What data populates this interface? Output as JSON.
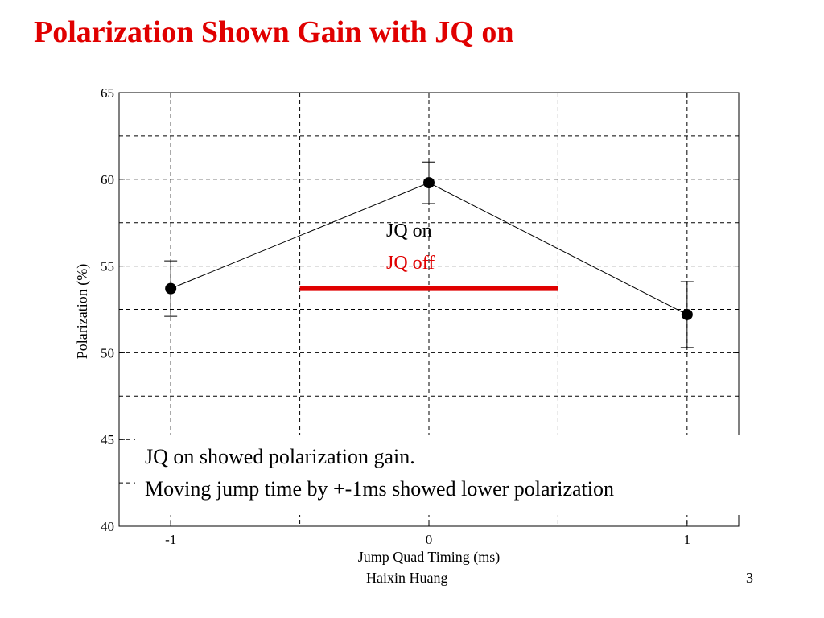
{
  "slide": {
    "title": "Polarization Shown Gain with JQ on",
    "footer_author": "Haixin Huang",
    "page_number": "3"
  },
  "notes": [
    "JQ on showed polarization gain.",
    "Moving jump time by +-1ms showed lower polarization"
  ],
  "chart_data": {
    "type": "line",
    "xlabel": "Jump Quad Timing (ms)",
    "ylabel": "Polarization (%)",
    "xlim": [
      -1.2,
      1.2
    ],
    "ylim": [
      40,
      65
    ],
    "x_ticks": [
      "-1",
      "0",
      "1"
    ],
    "x_tick_values": [
      -1,
      0,
      1
    ],
    "y_ticks": [
      "40",
      "45",
      "50",
      "55",
      "60",
      "65"
    ],
    "y_tick_values": [
      40,
      45,
      50,
      55,
      60,
      65
    ],
    "grid": true,
    "series": [
      {
        "name": "JQ on",
        "color": "#000000",
        "x": [
          -1,
          0,
          1
        ],
        "y": [
          53.7,
          59.8,
          52.2
        ],
        "error": [
          1.6,
          1.2,
          1.9
        ]
      },
      {
        "name": "JQ off",
        "color": "#e00000",
        "x": [
          -0.5,
          0.5
        ],
        "y": [
          53.7,
          53.7
        ]
      }
    ],
    "legend_position": "center"
  }
}
